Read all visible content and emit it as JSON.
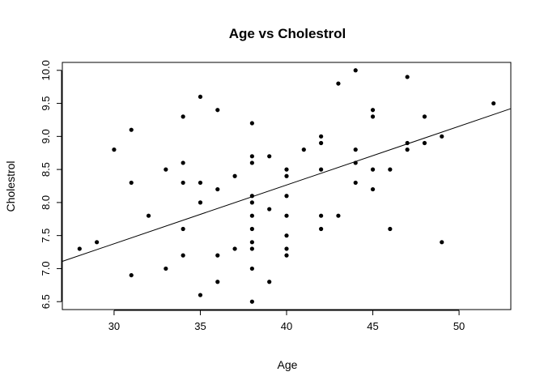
{
  "chart_data": {
    "type": "scatter",
    "title": "Age vs Cholestrol",
    "xlabel": "Age",
    "ylabel": "Cholestrol",
    "xlim": [
      27,
      53
    ],
    "ylim": [
      6.38,
      10.12
    ],
    "xticks": [
      "30",
      "35",
      "40",
      "45",
      "50"
    ],
    "yticks": [
      "6.5",
      "7.0",
      "7.5",
      "8.0",
      "8.5",
      "9.0",
      "9.5",
      "10.0"
    ],
    "grid": false,
    "legend": "none",
    "point_color": "#000000",
    "points": [
      {
        "x": 28,
        "y": 7.3
      },
      {
        "x": 29,
        "y": 7.4
      },
      {
        "x": 30,
        "y": 8.8
      },
      {
        "x": 31,
        "y": 9.1
      },
      {
        "x": 31,
        "y": 8.3
      },
      {
        "x": 31,
        "y": 6.9
      },
      {
        "x": 32,
        "y": 7.8
      },
      {
        "x": 33,
        "y": 8.5
      },
      {
        "x": 33,
        "y": 7.0
      },
      {
        "x": 34,
        "y": 9.3
      },
      {
        "x": 34,
        "y": 8.6
      },
      {
        "x": 34,
        "y": 8.3
      },
      {
        "x": 34,
        "y": 7.6
      },
      {
        "x": 34,
        "y": 7.2
      },
      {
        "x": 35,
        "y": 9.6
      },
      {
        "x": 35,
        "y": 8.3
      },
      {
        "x": 35,
        "y": 8.0
      },
      {
        "x": 35,
        "y": 6.6
      },
      {
        "x": 36,
        "y": 9.4
      },
      {
        "x": 36,
        "y": 8.2
      },
      {
        "x": 36,
        "y": 7.2
      },
      {
        "x": 36,
        "y": 6.8
      },
      {
        "x": 37,
        "y": 8.4
      },
      {
        "x": 37,
        "y": 7.3
      },
      {
        "x": 38,
        "y": 9.2
      },
      {
        "x": 38,
        "y": 8.7
      },
      {
        "x": 38,
        "y": 8.6
      },
      {
        "x": 38,
        "y": 8.1
      },
      {
        "x": 38,
        "y": 8.0
      },
      {
        "x": 38,
        "y": 7.8
      },
      {
        "x": 38,
        "y": 7.6
      },
      {
        "x": 38,
        "y": 7.4
      },
      {
        "x": 38,
        "y": 7.3
      },
      {
        "x": 38,
        "y": 7.0
      },
      {
        "x": 38,
        "y": 6.5
      },
      {
        "x": 39,
        "y": 8.7
      },
      {
        "x": 39,
        "y": 7.9
      },
      {
        "x": 39,
        "y": 6.8
      },
      {
        "x": 40,
        "y": 8.5
      },
      {
        "x": 40,
        "y": 8.4
      },
      {
        "x": 40,
        "y": 8.1
      },
      {
        "x": 40,
        "y": 7.8
      },
      {
        "x": 40,
        "y": 7.5
      },
      {
        "x": 40,
        "y": 7.3
      },
      {
        "x": 40,
        "y": 7.2
      },
      {
        "x": 41,
        "y": 8.8
      },
      {
        "x": 42,
        "y": 9.0
      },
      {
        "x": 42,
        "y": 8.9
      },
      {
        "x": 42,
        "y": 8.5
      },
      {
        "x": 42,
        "y": 7.8
      },
      {
        "x": 42,
        "y": 7.6
      },
      {
        "x": 43,
        "y": 9.8
      },
      {
        "x": 43,
        "y": 7.8
      },
      {
        "x": 44,
        "y": 10.0
      },
      {
        "x": 44,
        "y": 8.8
      },
      {
        "x": 44,
        "y": 8.6
      },
      {
        "x": 44,
        "y": 8.3
      },
      {
        "x": 45,
        "y": 9.4
      },
      {
        "x": 45,
        "y": 9.3
      },
      {
        "x": 45,
        "y": 8.5
      },
      {
        "x": 45,
        "y": 8.2
      },
      {
        "x": 46,
        "y": 8.5
      },
      {
        "x": 46,
        "y": 7.6
      },
      {
        "x": 47,
        "y": 9.9
      },
      {
        "x": 47,
        "y": 8.9
      },
      {
        "x": 47,
        "y": 8.8
      },
      {
        "x": 48,
        "y": 9.3
      },
      {
        "x": 48,
        "y": 8.9
      },
      {
        "x": 49,
        "y": 9.0
      },
      {
        "x": 49,
        "y": 7.4
      },
      {
        "x": 52,
        "y": 9.5
      }
    ],
    "regression_line": {
      "x": [
        27,
        53
      ],
      "y": [
        7.11,
        9.42
      ]
    }
  }
}
